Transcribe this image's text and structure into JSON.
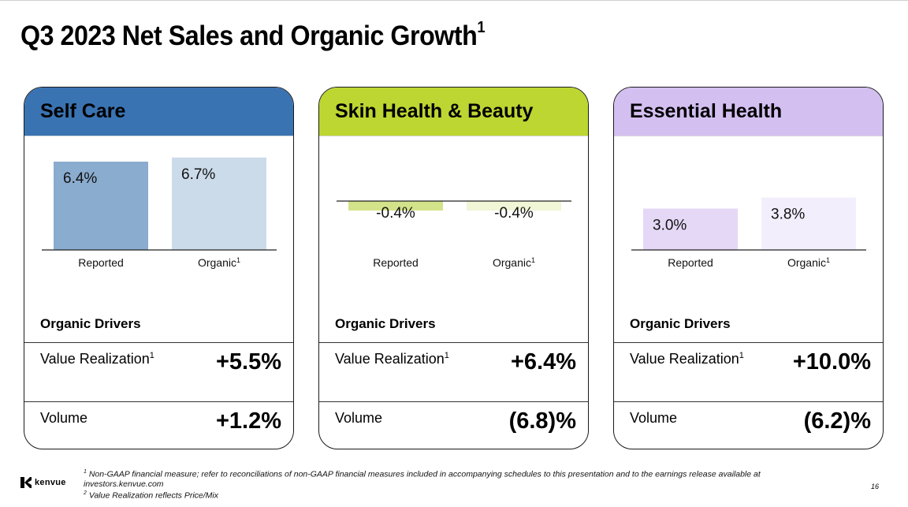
{
  "title": "Q3 2023 Net Sales and Organic Growth",
  "title_sup": "1",
  "chart_data": [
    {
      "type": "bar",
      "title": "Self Care",
      "categories": [
        "Reported",
        "Organic"
      ],
      "category_sups": [
        "",
        "1"
      ],
      "values": [
        6.4,
        6.7
      ],
      "labels": [
        "6.4%",
        "6.7%"
      ],
      "ylim": [
        -1,
        8
      ],
      "colors": [
        "#8aaccf",
        "#ccdbea"
      ]
    },
    {
      "type": "bar",
      "title": "Skin Health & Beauty",
      "categories": [
        "Reported",
        "Organic"
      ],
      "category_sups": [
        "",
        "1"
      ],
      "values": [
        -0.4,
        -0.4
      ],
      "labels": [
        "-0.4%",
        "-0.4%"
      ],
      "ylim": [
        -1,
        8
      ],
      "colors": [
        "#d3e38a",
        "#f0f6d6"
      ]
    },
    {
      "type": "bar",
      "title": "Essential Health",
      "categories": [
        "Reported",
        "Organic"
      ],
      "category_sups": [
        "",
        "1"
      ],
      "values": [
        3.0,
        3.8
      ],
      "labels": [
        "3.0%",
        "3.8%"
      ],
      "ylim": [
        -1,
        8
      ],
      "colors": [
        "#e5d8f6",
        "#f3eefc"
      ]
    }
  ],
  "segments": [
    {
      "name": "Self Care",
      "header_color": "#3a73b2",
      "drivers_title": "Organic Drivers",
      "drivers": [
        {
          "label": "Value Realization",
          "sup": "1",
          "value": "+5.5%"
        },
        {
          "label": "Volume",
          "sup": "",
          "value": "+1.2%"
        }
      ]
    },
    {
      "name": "Skin Health & Beauty",
      "header_color": "#bdd631",
      "drivers_title": "Organic Drivers",
      "drivers": [
        {
          "label": "Value Realization",
          "sup": "1",
          "value": "+6.4%"
        },
        {
          "label": "Volume",
          "sup": "",
          "value": "(6.8)%"
        }
      ]
    },
    {
      "name": "Essential Health",
      "header_color": "#d4bff1",
      "drivers_title": "Organic Drivers",
      "drivers": [
        {
          "label": "Value Realization",
          "sup": "1",
          "value": "+10.0%"
        },
        {
          "label": "Volume",
          "sup": "",
          "value": "(6.2)%"
        }
      ]
    }
  ],
  "footnotes": {
    "note1_sup": "1",
    "note1_line1": "Non-GAAP financial measure; refer to reconciliations of non-GAAP financial measures included in accompanying schedules to this presentation and to the earnings release available at",
    "note1_line2": "investors.kenvue.com",
    "note2_sup": "2",
    "note2": "Value Realization reflects Price/Mix"
  },
  "logo": {
    "text": "kenvue",
    "icon": "kenvue-k-icon"
  },
  "page_number": "16"
}
